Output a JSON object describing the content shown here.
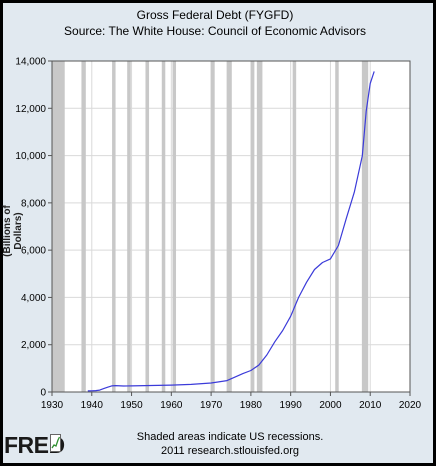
{
  "chart_data": {
    "type": "line",
    "title": "Gross Federal Debt (FYGFD)",
    "subtitle": "Source: The White House: Council of Economic Advisors",
    "ylabel": "(Billions of Dollars)",
    "xlabel": "",
    "xlim": [
      1930,
      2020
    ],
    "ylim": [
      0,
      14000
    ],
    "x_ticks": [
      1930,
      1940,
      1950,
      1960,
      1970,
      1980,
      1990,
      2000,
      2010,
      2020
    ],
    "y_ticks": [
      0,
      2000,
      4000,
      6000,
      8000,
      10000,
      12000,
      14000
    ],
    "y_tick_labels": [
      "0",
      "2,000",
      "4,000",
      "6,000",
      "8,000",
      "10,000",
      "12,000",
      "14,000"
    ],
    "grid": true,
    "series": [
      {
        "color": "#3b3bd9",
        "x": [
          1939,
          1940,
          1941,
          1942,
          1943,
          1944,
          1945,
          1946,
          1948,
          1950,
          1955,
          1960,
          1965,
          1970,
          1974,
          1976,
          1978,
          1980,
          1982,
          1984,
          1986,
          1988,
          1990,
          1992,
          1994,
          1996,
          1998,
          2000,
          2002,
          2004,
          2006,
          2008,
          2009,
          2010,
          2011
        ],
        "y": [
          48,
          51,
          58,
          79,
          143,
          204,
          260,
          271,
          252,
          257,
          274,
          291,
          322,
          381,
          484,
          629,
          777,
          909,
          1137,
          1565,
          2125,
          2602,
          3206,
          4002,
          4643,
          5181,
          5478,
          5629,
          6198,
          7355,
          8451,
          9986,
          11876,
          13050,
          13560
        ]
      }
    ],
    "recessions": [
      [
        1929.6,
        1933.2
      ],
      [
        1937.4,
        1938.5
      ],
      [
        1945.1,
        1945.8
      ],
      [
        1948.9,
        1949.8
      ],
      [
        1953.5,
        1954.4
      ],
      [
        1957.6,
        1958.3
      ],
      [
        1960.3,
        1961.1
      ],
      [
        1969.9,
        1970.9
      ],
      [
        1973.9,
        1975.2
      ],
      [
        1980.0,
        1980.5
      ],
      [
        1981.5,
        1982.9
      ],
      [
        1990.5,
        1991.2
      ],
      [
        2001.2,
        2001.9
      ],
      [
        2007.9,
        2009.5
      ]
    ],
    "recession_note": "Shaded areas indicate US recessions.",
    "source_line": "2011 research.stlouisfed.org"
  },
  "branding": {
    "logo_text": "FRED"
  },
  "colors": {
    "plot_background": "#ffffff",
    "frame_background": "#e1e9f0",
    "recession_shade": "#c8c8c8",
    "grid": "#d9d9d9",
    "line": "#3b3bd9"
  }
}
